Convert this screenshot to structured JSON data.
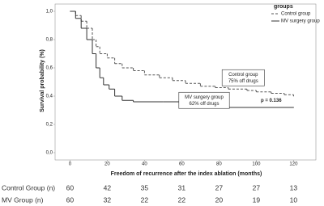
{
  "chart_data": {
    "type": "step",
    "xlabel": "Freedom of recurrence after the index ablation (months)",
    "ylabel": "Survival probability (%)",
    "xlim": [
      -8,
      132
    ],
    "ylim": [
      0,
      1
    ],
    "xticks": [
      0,
      20,
      40,
      60,
      80,
      100,
      120
    ],
    "yticks": [
      {
        "value": 0,
        "label": "0,0"
      },
      {
        "value": 0.2,
        "label": "0,2"
      },
      {
        "value": 0.4,
        "label": "0,4"
      },
      {
        "value": 0.6,
        "label": "0,6"
      },
      {
        "value": 0.8,
        "label": "0,8"
      },
      {
        "value": 1,
        "label": "1,0"
      }
    ],
    "legend_title": "groups",
    "legend": "top-right",
    "series": [
      {
        "name": "Control group",
        "color": "#555555",
        "dash": true,
        "x": [
          0,
          3,
          6,
          9,
          12,
          14,
          16,
          20,
          24,
          28,
          34,
          40,
          48,
          55,
          62,
          70,
          78,
          85,
          95,
          100,
          108,
          115,
          120
        ],
        "values": [
          1,
          0.97,
          0.93,
          0.88,
          0.8,
          0.75,
          0.7,
          0.67,
          0.63,
          0.6,
          0.58,
          0.55,
          0.53,
          0.51,
          0.49,
          0.47,
          0.46,
          0.45,
          0.44,
          0.43,
          0.42,
          0.41,
          0.4
        ]
      },
      {
        "name": "MV surgery group",
        "color": "#333333",
        "dash": false,
        "x": [
          0,
          3,
          6,
          9,
          12,
          14,
          16,
          18,
          21,
          24,
          28,
          34,
          50,
          60,
          70,
          80,
          120
        ],
        "values": [
          1,
          0.95,
          0.88,
          0.8,
          0.7,
          0.6,
          0.53,
          0.48,
          0.45,
          0.4,
          0.37,
          0.36,
          0.36,
          0.35,
          0.33,
          0.32,
          0.32
        ]
      }
    ],
    "annotations": [
      {
        "lines": [
          "Control group",
          "75% off drugs"
        ],
        "x": 93,
        "y": 0.53
      },
      {
        "lines": [
          "MV surgery group",
          "62% off drugs"
        ],
        "x": 72,
        "y": 0.37
      },
      {
        "lines": [
          "p = 0.136"
        ],
        "x": 108,
        "y": 0.37,
        "bold": true
      }
    ],
    "risk_table": {
      "rows": [
        {
          "label": "Control Group (n)",
          "values": [
            60,
            42,
            35,
            31,
            27,
            27,
            13
          ]
        },
        {
          "label": "MV Group (n)",
          "values": [
            60,
            32,
            22,
            22,
            20,
            19,
            10
          ]
        }
      ]
    }
  }
}
